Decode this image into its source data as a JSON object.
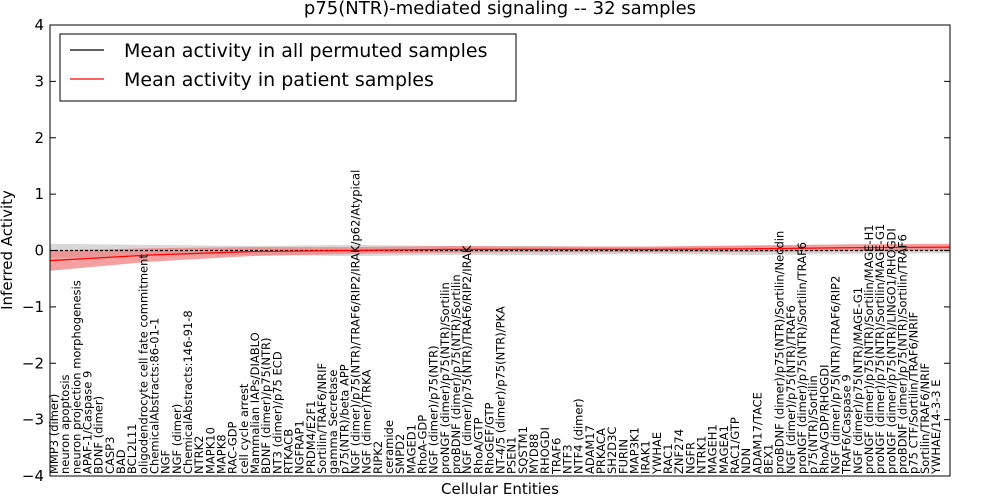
{
  "chart_data": {
    "type": "line",
    "title": "p75(NTR)-mediated signaling -- 32 samples",
    "xlabel": "Cellular Entities",
    "ylabel": "Inferred Activity",
    "ylim": [
      -4,
      4
    ],
    "yticks": [
      -4,
      -3,
      -2,
      -1,
      0,
      1,
      2,
      3,
      4
    ],
    "ytick_labels": [
      "−4",
      "−3",
      "−2",
      "−1",
      "0",
      "1",
      "2",
      "3",
      "4"
    ],
    "legend_position": "top-left",
    "series": [
      {
        "name": "Mean activity in all permuted samples",
        "color": "#000000",
        "band_color": "#c8c8c8",
        "mean": [
          0.0,
          0.0,
          0.0,
          0.0,
          0.0,
          0.0,
          0.0,
          0.0,
          0.0,
          0.0
        ],
        "band": [
          0.12,
          0.1,
          0.08,
          0.1,
          0.08,
          0.08,
          0.06,
          0.08,
          0.06,
          0.05
        ]
      },
      {
        "name": "Mean activity in patient samples",
        "color": "#ff0000",
        "band_color": "#f08080",
        "mean": [
          -0.18,
          -0.08,
          -0.02,
          0.0,
          0.02,
          0.02,
          0.02,
          0.03,
          0.05,
          0.06
        ],
        "band": [
          0.18,
          0.12,
          0.08,
          0.06,
          0.06,
          0.05,
          0.05,
          0.06,
          0.06,
          0.06
        ]
      }
    ],
    "entity_labels": [
      "MMP3 (dimer)",
      "neuron apoptosis",
      "neuron projection morphogenesis",
      "APAF-1/Caspase 9",
      "BDNF (dimer)",
      "CASP3",
      "BAD",
      "BCL2L11",
      "oligodendrocyte cell fate commitment",
      "ChemicalAbstracts:86-01-1",
      "NGF",
      "NGF (dimer)",
      "ChemicalAbstracts:146-91-8",
      "NTRK2",
      "MAPK10",
      "MAPK8",
      "RAC-GDP",
      "cell cycle arrest",
      "Mammalian IAPs/DIABLO",
      "BDNF (dimer)/p75(NTR)",
      "NT3 (dimer)/p75 ECD",
      "RTKACB",
      "NGFRAP1",
      "PRDM4/E2F1",
      "Sortilin/TRAF6/NRIF",
      "gamma Secretase",
      "p75(NTR)/beta APP",
      "NGF (dimer)/p75(NTR)/TRAF6/RIP2/IRAK/p62/Atypical",
      "NGF (dimer)/TRKA",
      "RIPK2",
      "ceramide",
      "SMPD2",
      "MAGED1",
      "RhoA-GDP",
      "NGF (dimer)/p75(NTR)",
      "proNGF (dimer)/p75(NTR)/Sortilin",
      "proBDNF (dimer)/p75(NTR)/Sortilin",
      "NGF (dimer)/p75(NTR)/TRAF6/RIP2/IRAK",
      "RhoA/GTP",
      "RhoGEF/GTP",
      "NT-4/5 (dimer)/p75(NTR)/PKA",
      "PSEN1",
      "SQSTM1",
      "MYD88",
      "RHOGDI",
      "TRAF6",
      "NTF3",
      "NTF4 (dimer)",
      "ADAM17",
      "PRKACA",
      "SH2D3C",
      "FURIN",
      "MAP3K1",
      "IRAK1",
      "YWHAE",
      "RAC1",
      "ZNF274",
      "NGFR",
      "NTRK1",
      "MAGEH1",
      "MAGEA1",
      "RAC1/GTP",
      "NDN",
      "ADAM17/TACE",
      "BEX1",
      "proBDNF (dimer)/p75(NTR)/Sortilin/Necdin",
      "NGF (dimer)/p75(NTR)/TRAF6",
      "proNGF (dimer)/p75(NTR)/Sortilin/TRAF6",
      "p75(NTR)/Sortilin",
      "RhoA/GDP/RHOGDI",
      "NGF (dimer)/p75(NTR)/TRAF6/RIP2",
      "TRAF6/Caspase 9",
      "NGF (dimer)/p75(NTR)/MAGE-G1",
      "proNGF (dimer)/p75(NTR)/Sortilin/MAGE-H1",
      "proNGF (dimer)/p75(NTR)/Sortilin/MAGE-G1",
      "proNGF (dimer)/p75(NTR)/LINGO1/RHOGDI",
      "proBDNF (dimer)/p75(NTR)/Sortilin/TRAF6",
      "p75 CTF/Sortilin/TRAF6/NRIF",
      "Sortilin/TRAF6/NRIF",
      "YWHAE/14-3-3 E"
    ]
  }
}
